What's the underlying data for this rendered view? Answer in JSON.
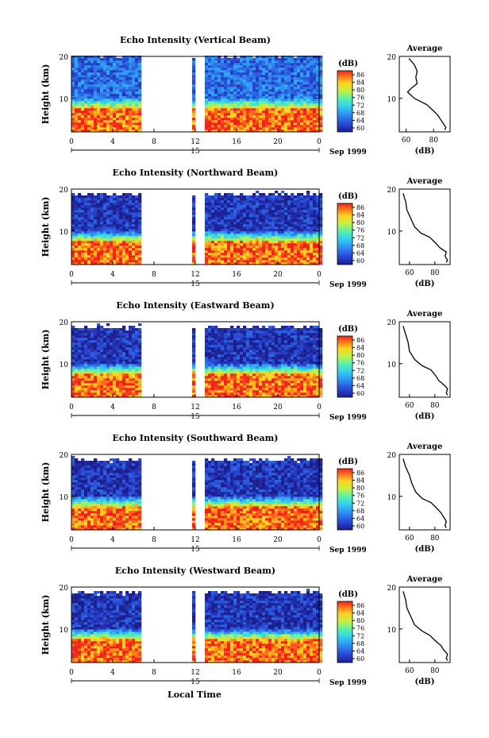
{
  "figure": {
    "date_label": "Sep 1999",
    "xlabel": "Local Time",
    "colorbar_unit": "(dB)",
    "colorbar_ticks": [
      "86",
      "84",
      "80",
      "76",
      "72",
      "68",
      "64",
      "60"
    ]
  },
  "chart_data": [
    {
      "type": "heatmap",
      "title": "Echo Intensity (Vertical Beam)",
      "xlabel": "",
      "ylabel": "Height (km)",
      "x_ticks": [
        "0",
        "4",
        "8",
        "12",
        "16",
        "20",
        "0"
      ],
      "y_ticks": [
        "20",
        "10"
      ],
      "date_ticks": [
        "15"
      ],
      "xlim": [
        0,
        24
      ],
      "ylim": [
        2,
        20
      ],
      "data_gaps_hours": [
        [
          6.7,
          11.5
        ],
        [
          11.9,
          12.7
        ]
      ],
      "value_range_db": [
        60,
        88
      ],
      "layers": [
        {
          "height_range_km": [
            2,
            8
          ],
          "level_db": 86
        },
        {
          "height_range_km": [
            8,
            10
          ],
          "level_db": 72
        },
        {
          "height_range_km": [
            10,
            20
          ],
          "level_db": 66
        }
      ],
      "average_profile": {
        "title": "Average",
        "xlabel": "(dB)",
        "x_ticks": [
          "60",
          "80"
        ],
        "xlim": [
          55,
          92
        ],
        "points": [
          [
            19.5,
            62
          ],
          [
            18,
            66
          ],
          [
            16.5,
            68
          ],
          [
            15,
            67
          ],
          [
            13.5,
            68
          ],
          [
            12.5,
            64
          ],
          [
            11.5,
            61
          ],
          [
            10,
            66
          ],
          [
            8.5,
            75
          ],
          [
            7,
            80
          ],
          [
            6,
            83
          ],
          [
            5,
            85
          ],
          [
            4,
            87
          ],
          [
            3,
            89
          ],
          [
            2.5,
            88
          ]
        ]
      }
    },
    {
      "type": "heatmap",
      "title": "Echo Intensity (Northward Beam)",
      "xlabel": "",
      "ylabel": "Height (km)",
      "x_ticks": [
        "0",
        "4",
        "8",
        "12",
        "16",
        "20",
        "0"
      ],
      "y_ticks": [
        "20",
        "10"
      ],
      "date_ticks": [
        "15"
      ],
      "xlim": [
        0,
        24
      ],
      "ylim": [
        2,
        20
      ],
      "data_gaps_hours": [
        [
          6.7,
          11.5
        ],
        [
          11.9,
          12.7
        ]
      ],
      "value_range_db": [
        60,
        88
      ],
      "layers": [
        {
          "height_range_km": [
            2,
            8
          ],
          "level_db": 86
        },
        {
          "height_range_km": [
            8,
            10
          ],
          "level_db": 72
        },
        {
          "height_range_km": [
            10,
            18.5
          ],
          "level_db": 62
        }
      ],
      "average_profile": {
        "title": "Average",
        "xlabel": "(dB)",
        "x_ticks": [
          "60",
          "80"
        ],
        "xlim": [
          52,
          92
        ],
        "points": [
          [
            19,
            55
          ],
          [
            17,
            57
          ],
          [
            15,
            58
          ],
          [
            13,
            61
          ],
          [
            11,
            64
          ],
          [
            9.5,
            69
          ],
          [
            8.5,
            76
          ],
          [
            7,
            81
          ],
          [
            6,
            84
          ],
          [
            5,
            89
          ],
          [
            4,
            88
          ],
          [
            3,
            90
          ],
          [
            2.5,
            89
          ]
        ]
      }
    },
    {
      "type": "heatmap",
      "title": "Echo Intensity (Eastward Beam)",
      "xlabel": "",
      "ylabel": "Height (km)",
      "x_ticks": [
        "0",
        "4",
        "8",
        "12",
        "16",
        "20",
        "0"
      ],
      "y_ticks": [
        "20",
        "10"
      ],
      "date_ticks": [
        "15"
      ],
      "xlim": [
        0,
        24
      ],
      "ylim": [
        2,
        20
      ],
      "data_gaps_hours": [
        [
          6.7,
          11.5
        ],
        [
          11.9,
          12.7
        ]
      ],
      "value_range_db": [
        60,
        88
      ],
      "layers": [
        {
          "height_range_km": [
            2,
            8
          ],
          "level_db": 86
        },
        {
          "height_range_km": [
            8,
            10
          ],
          "level_db": 72
        },
        {
          "height_range_km": [
            10,
            18.5
          ],
          "level_db": 62
        }
      ],
      "average_profile": {
        "title": "Average",
        "xlabel": "(dB)",
        "x_ticks": [
          "60",
          "80"
        ],
        "xlim": [
          52,
          92
        ],
        "points": [
          [
            19,
            55
          ],
          [
            17,
            57
          ],
          [
            15,
            59
          ],
          [
            13,
            60
          ],
          [
            11,
            64
          ],
          [
            9.5,
            70
          ],
          [
            8.5,
            77
          ],
          [
            7,
            81
          ],
          [
            6,
            83
          ],
          [
            5,
            87
          ],
          [
            4,
            90
          ],
          [
            3,
            89
          ],
          [
            2.5,
            90
          ]
        ]
      }
    },
    {
      "type": "heatmap",
      "title": "Echo Intensity (Southward Beam)",
      "xlabel": "",
      "ylabel": "Height (km)",
      "x_ticks": [
        "0",
        "4",
        "8",
        "12",
        "16",
        "20",
        "0"
      ],
      "y_ticks": [
        "20",
        "10"
      ],
      "date_ticks": [
        "15"
      ],
      "xlim": [
        0,
        24
      ],
      "ylim": [
        2,
        20
      ],
      "data_gaps_hours": [
        [
          6.7,
          11.5
        ],
        [
          11.9,
          12.7
        ]
      ],
      "value_range_db": [
        60,
        88
      ],
      "layers": [
        {
          "height_range_km": [
            2,
            8
          ],
          "level_db": 86
        },
        {
          "height_range_km": [
            8,
            10
          ],
          "level_db": 72
        },
        {
          "height_range_km": [
            10,
            18.5
          ],
          "level_db": 62
        }
      ],
      "average_profile": {
        "title": "Average",
        "xlabel": "(dB)",
        "x_ticks": [
          "60",
          "80"
        ],
        "xlim": [
          52,
          92
        ],
        "points": [
          [
            19,
            55
          ],
          [
            17,
            57
          ],
          [
            15,
            60
          ],
          [
            13,
            62
          ],
          [
            11,
            65
          ],
          [
            9.5,
            70
          ],
          [
            8.5,
            77
          ],
          [
            7,
            82
          ],
          [
            6,
            85
          ],
          [
            5,
            87
          ],
          [
            4,
            89
          ],
          [
            3,
            88
          ],
          [
            2.5,
            89
          ]
        ]
      }
    },
    {
      "type": "heatmap",
      "title": "Echo Intensity (Westward Beam)",
      "xlabel": "Local Time",
      "ylabel": "Height (km)",
      "x_ticks": [
        "0",
        "4",
        "8",
        "12",
        "16",
        "20",
        "0"
      ],
      "y_ticks": [
        "20",
        "10"
      ],
      "date_ticks": [
        "15"
      ],
      "xlim": [
        0,
        24
      ],
      "ylim": [
        2,
        20
      ],
      "data_gaps_hours": [
        [
          6.7,
          11.5
        ],
        [
          11.9,
          12.7
        ]
      ],
      "value_range_db": [
        60,
        88
      ],
      "layers": [
        {
          "height_range_km": [
            2,
            8
          ],
          "level_db": 86
        },
        {
          "height_range_km": [
            8,
            10
          ],
          "level_db": 72
        },
        {
          "height_range_km": [
            10,
            18.5
          ],
          "level_db": 62
        }
      ],
      "average_profile": {
        "title": "Average",
        "xlabel": "(dB)",
        "x_ticks": [
          "60",
          "80"
        ],
        "xlim": [
          52,
          92
        ],
        "points": [
          [
            19,
            55
          ],
          [
            17,
            57
          ],
          [
            15,
            58
          ],
          [
            13,
            61
          ],
          [
            11,
            64
          ],
          [
            9.5,
            70
          ],
          [
            8.5,
            76
          ],
          [
            7,
            81
          ],
          [
            6,
            85
          ],
          [
            5,
            87
          ],
          [
            4,
            90
          ],
          [
            3,
            89
          ],
          [
            2.5,
            90
          ]
        ]
      }
    }
  ]
}
